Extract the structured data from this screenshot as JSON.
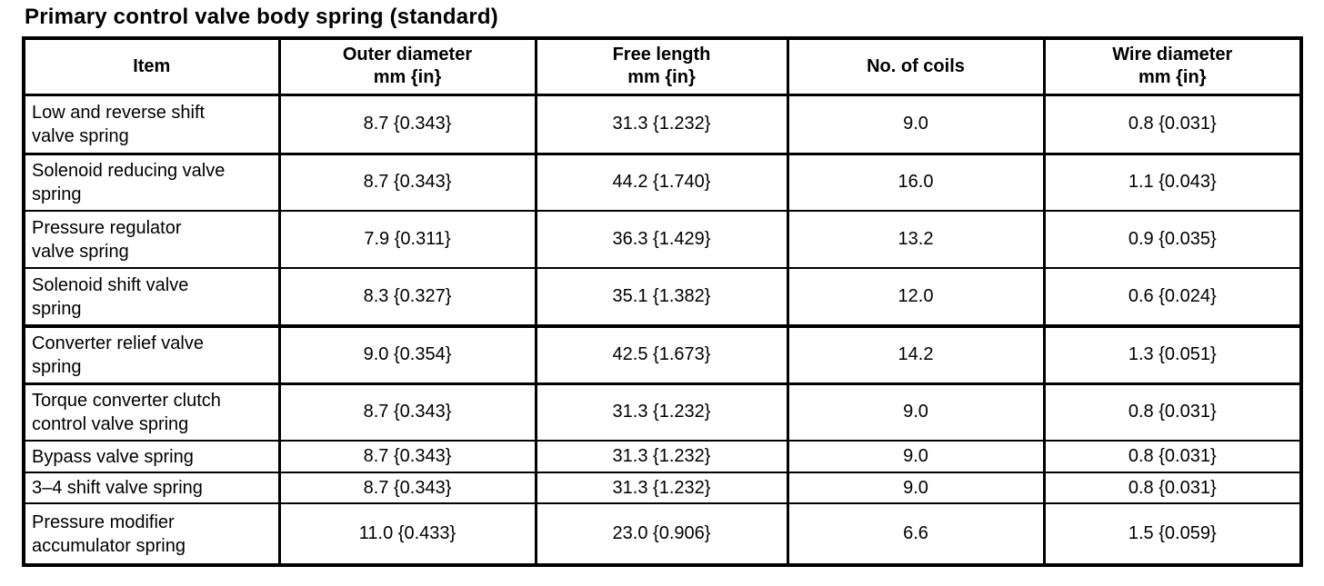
{
  "title": "Primary control valve body spring (standard)",
  "colors": {
    "text": "#000000",
    "background": "#ffffff",
    "border": "#000000"
  },
  "table": {
    "columns": [
      {
        "label": "Item",
        "unit": ""
      },
      {
        "label": "Outer diameter",
        "unit": "mm {in}"
      },
      {
        "label": "Free length",
        "unit": "mm {in}"
      },
      {
        "label": "No. of coils",
        "unit": ""
      },
      {
        "label": "Wire diameter",
        "unit": "mm {in}"
      }
    ],
    "rows": [
      [
        "Low and reverse shift\nvalve spring",
        "8.7 {0.343}",
        "31.3 {1.232}",
        "9.0",
        "0.8 {0.031}"
      ],
      [
        "Solenoid reducing valve\nspring",
        "8.7 {0.343}",
        "44.2 {1.740}",
        "16.0",
        "1.1 {0.043}"
      ],
      [
        "Pressure regulator\nvalve spring",
        "7.9 {0.311}",
        "36.3 {1.429}",
        "13.2",
        "0.9 {0.035}"
      ],
      [
        "Solenoid shift valve\nspring",
        "8.3 {0.327}",
        "35.1 {1.382}",
        "12.0",
        "0.6 {0.024}"
      ],
      [
        "Converter relief valve\nspring",
        "9.0 {0.354}",
        "42.5 {1.673}",
        "14.2",
        "1.3 {0.051}"
      ],
      [
        "Torque converter clutch\ncontrol valve spring",
        "8.7 {0.343}",
        "31.3 {1.232}",
        "9.0",
        "0.8 {0.031}"
      ],
      [
        "Bypass valve spring",
        "8.7 {0.343}",
        "31.3 {1.232}",
        "9.0",
        "0.8 {0.031}"
      ],
      [
        "3–4 shift valve spring",
        "8.7 {0.343}",
        "31.3 {1.232}",
        "9.0",
        "0.8 {0.031}"
      ],
      [
        "Pressure modifier\naccumulator spring",
        "11.0 {0.433}",
        "23.0 {0.906}",
        "6.6",
        "1.5 {0.059}"
      ]
    ]
  }
}
